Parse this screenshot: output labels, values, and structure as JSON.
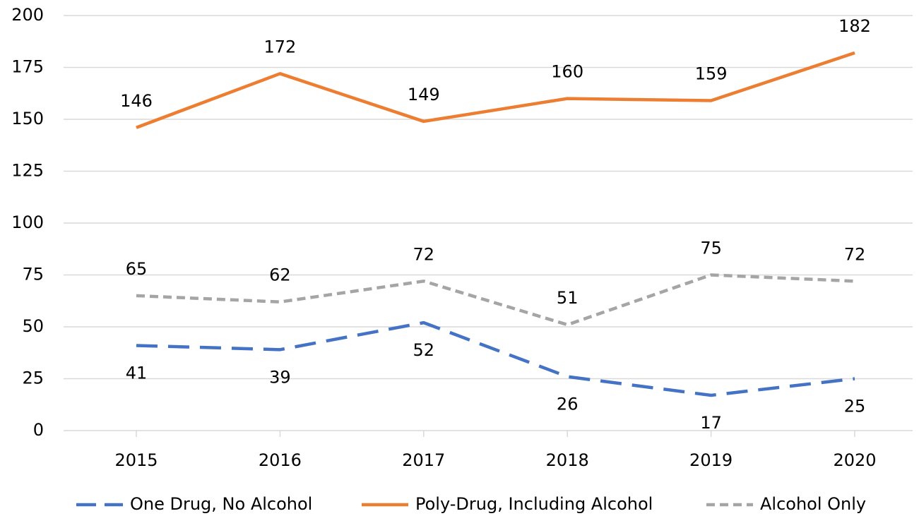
{
  "chart_data": {
    "type": "line",
    "categories": [
      "2015",
      "2016",
      "2017",
      "2018",
      "2019",
      "2020"
    ],
    "series": [
      {
        "name": "One Drug, No Alcohol",
        "color": "#4472c4",
        "values": [
          41,
          39,
          52,
          26,
          17,
          25
        ]
      },
      {
        "name": "Poly-Drug, Including Alcohol",
        "color": "#ed7d31",
        "values": [
          146,
          172,
          149,
          160,
          159,
          182
        ]
      },
      {
        "name": "Alcohol Only",
        "color": "#a5a5a5",
        "values": [
          65,
          62,
          72,
          51,
          75,
          72
        ]
      }
    ],
    "ylim": [
      0,
      200
    ],
    "yticks": [
      0,
      25,
      50,
      75,
      100,
      125,
      150,
      175,
      200
    ],
    "grid": true,
    "legend": "bottom"
  }
}
